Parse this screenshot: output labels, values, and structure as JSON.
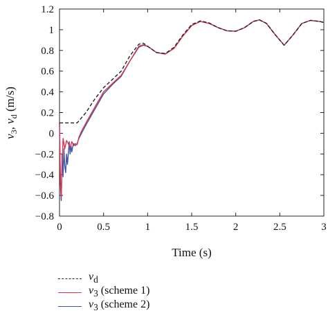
{
  "chart_data": {
    "type": "line",
    "title": "",
    "xlabel": "Time (s)",
    "ylabel": "v3, vd (m/s)",
    "xlim": [
      0,
      3
    ],
    "ylim": [
      -0.8,
      1.2
    ],
    "xticks": [
      0,
      0.5,
      1,
      1.5,
      2,
      2.5,
      3
    ],
    "xtick_labels": [
      "0",
      "0.5",
      "1",
      "1.5",
      "2",
      "2.5",
      "3"
    ],
    "yticks": [
      -0.8,
      -0.6,
      -0.4,
      -0.2,
      0,
      0.2,
      0.4,
      0.6,
      0.8,
      1,
      1.2
    ],
    "ytick_labels": [
      "−0.8",
      "−0.6",
      "−0.4",
      "−0.2",
      "0",
      "0.2",
      "0.4",
      "0.6",
      "0.8",
      "1",
      "1.2"
    ],
    "grid": false,
    "legend_position": "below",
    "series": [
      {
        "name": "vd",
        "legend_var": "v",
        "legend_sub": "d",
        "legend_suffix": "",
        "style": "dashed",
        "color": "#222222",
        "x": [
          0,
          0.03,
          0.1,
          0.2,
          0.3,
          0.4,
          0.5,
          0.6,
          0.7,
          0.8,
          0.9,
          0.95,
          1.0,
          1.1,
          1.2,
          1.3,
          1.4,
          1.5,
          1.6,
          1.7,
          1.8,
          1.9,
          2.0,
          2.1,
          2.2,
          2.27,
          2.35,
          2.45,
          2.55,
          2.65,
          2.75,
          2.85,
          2.95,
          3.0
        ],
        "y": [
          0.1,
          0.1,
          0.1,
          0.1,
          0.2,
          0.33,
          0.44,
          0.52,
          0.6,
          0.75,
          0.86,
          0.87,
          0.84,
          0.78,
          0.77,
          0.83,
          0.95,
          1.05,
          1.085,
          1.065,
          1.02,
          0.99,
          0.985,
          1.02,
          1.08,
          1.095,
          1.06,
          0.95,
          0.85,
          0.95,
          1.06,
          1.09,
          1.08,
          1.07
        ]
      },
      {
        "name": "v3 (scheme 1)",
        "legend_var": "v",
        "legend_sub": "3",
        "legend_suffix": " (scheme 1)",
        "style": "solid",
        "color": "#e0304a",
        "x": [
          0,
          0.01,
          0.02,
          0.03,
          0.04,
          0.06,
          0.08,
          0.1,
          0.12,
          0.14,
          0.16,
          0.18,
          0.2,
          0.22,
          0.25,
          0.3,
          0.4,
          0.5,
          0.6,
          0.7,
          0.8,
          0.9,
          0.95,
          1.0,
          1.1,
          1.2,
          1.3,
          1.4,
          1.5,
          1.6,
          1.7,
          1.8,
          1.9,
          2.0,
          2.1,
          2.2,
          2.27,
          2.35,
          2.45,
          2.55,
          2.65,
          2.75,
          2.85,
          2.95,
          3.0
        ],
        "y": [
          0.1,
          -0.45,
          -0.62,
          -0.3,
          -0.05,
          -0.15,
          -0.07,
          -0.1,
          -0.14,
          -0.08,
          -0.12,
          -0.1,
          -0.11,
          -0.04,
          0.02,
          0.1,
          0.25,
          0.4,
          0.48,
          0.56,
          0.7,
          0.84,
          0.855,
          0.84,
          0.78,
          0.765,
          0.82,
          0.94,
          1.04,
          1.08,
          1.06,
          1.02,
          0.99,
          0.985,
          1.02,
          1.08,
          1.095,
          1.06,
          0.95,
          0.85,
          0.95,
          1.06,
          1.09,
          1.08,
          1.07
        ]
      },
      {
        "name": "v3 (scheme 2)",
        "legend_var": "v",
        "legend_sub": "3",
        "legend_suffix": " (scheme 2)",
        "style": "solid",
        "color": "#3a55a8",
        "x": [
          0,
          0.01,
          0.02,
          0.03,
          0.04,
          0.05,
          0.06,
          0.07,
          0.08,
          0.09,
          0.1,
          0.11,
          0.12,
          0.13,
          0.14,
          0.15,
          0.16,
          0.18,
          0.2,
          0.22,
          0.25,
          0.3,
          0.4,
          0.5,
          0.6,
          0.7,
          0.8,
          0.9,
          0.95,
          1.0,
          1.1,
          1.2,
          1.3,
          1.4,
          1.5,
          1.6,
          1.7,
          1.8,
          1.9,
          2.0,
          2.1,
          2.2,
          2.27,
          2.35,
          2.45,
          2.55,
          2.65,
          2.75,
          2.85,
          2.95,
          3.0
        ],
        "y": [
          0.1,
          -0.5,
          -0.65,
          -0.2,
          -0.42,
          -0.15,
          -0.32,
          -0.38,
          -0.2,
          -0.3,
          -0.2,
          -0.08,
          -0.2,
          -0.12,
          -0.18,
          -0.13,
          -0.1,
          -0.12,
          -0.1,
          -0.05,
          0.0,
          0.08,
          0.23,
          0.38,
          0.47,
          0.55,
          0.7,
          0.83,
          0.85,
          0.84,
          0.78,
          0.765,
          0.82,
          0.94,
          1.04,
          1.08,
          1.06,
          1.02,
          0.99,
          0.985,
          1.02,
          1.08,
          1.095,
          1.06,
          0.95,
          0.85,
          0.95,
          1.06,
          1.09,
          1.08,
          1.07
        ]
      }
    ]
  }
}
